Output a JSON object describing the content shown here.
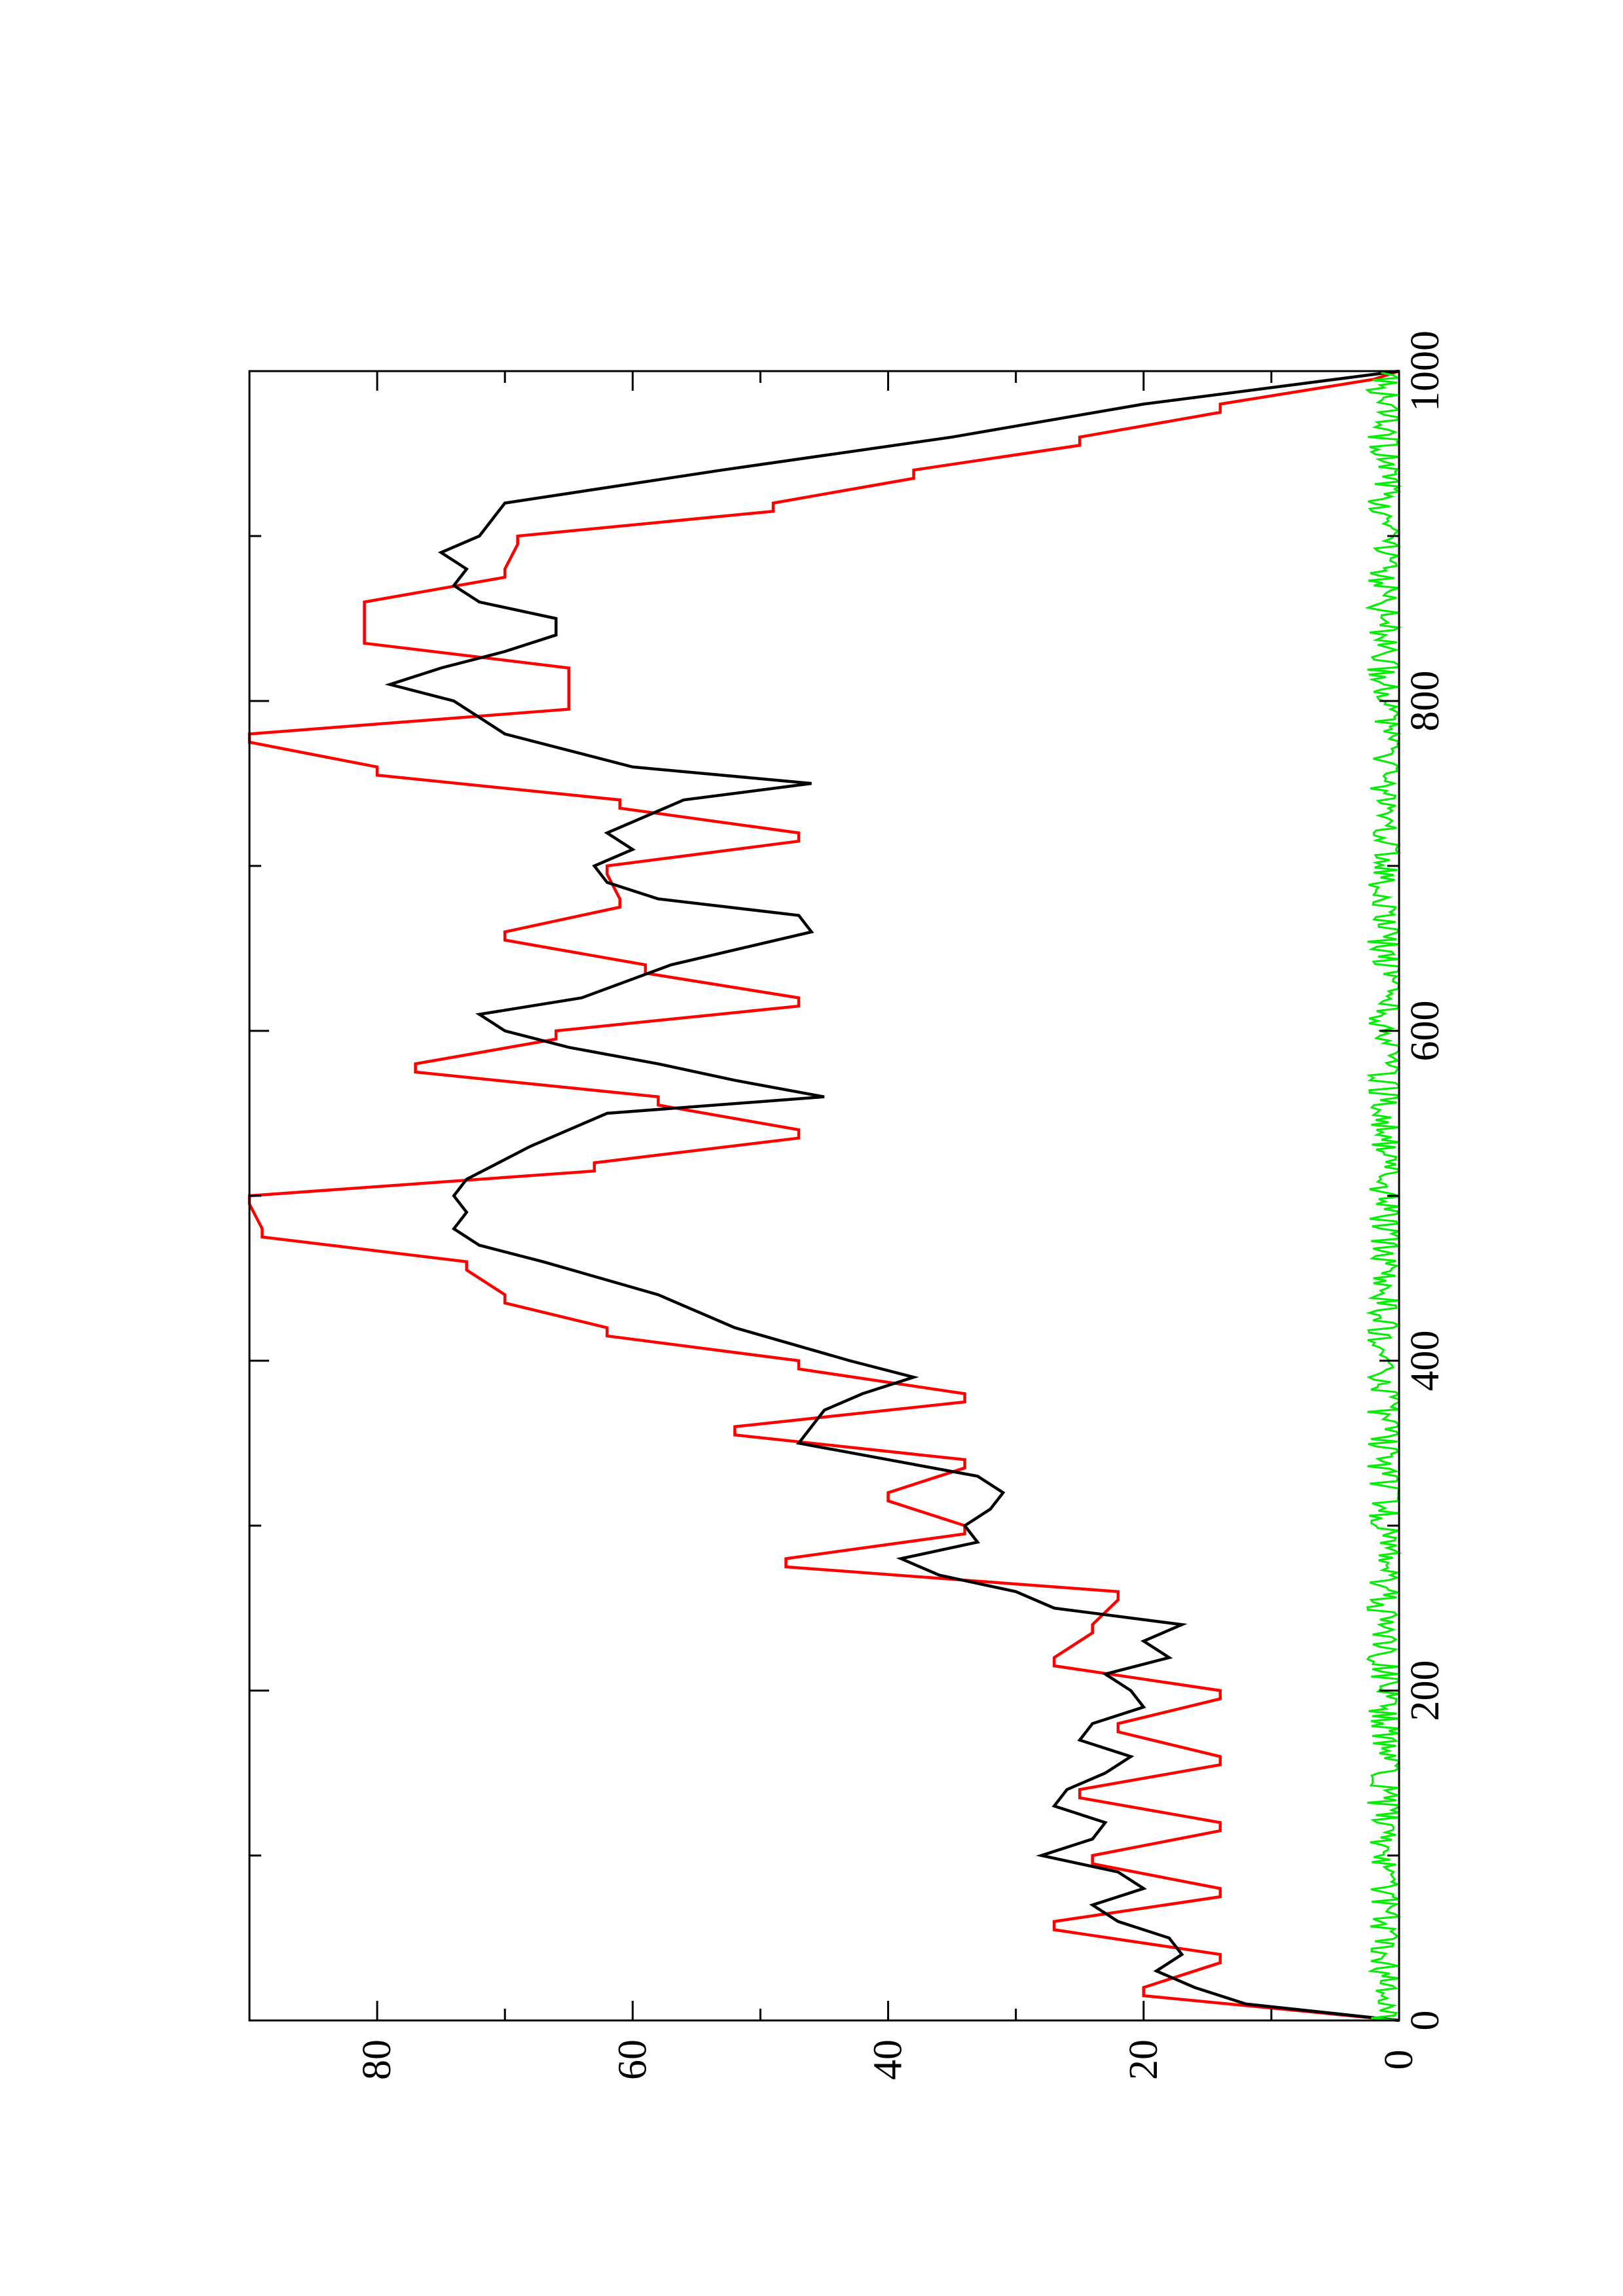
{
  "chart_data": {
    "type": "line",
    "title": "",
    "xlabel": "",
    "ylabel": "",
    "orientation": "rotated-90-ccw",
    "xlim": [
      0,
      1000
    ],
    "ylim": [
      0,
      90
    ],
    "x_ticks": [
      0,
      200,
      400,
      600,
      800,
      1000
    ],
    "x_tick_labels": [
      "0",
      "200",
      "400",
      "600",
      "800",
      "1000"
    ],
    "x_minor_ticks": [
      100,
      300,
      500,
      700,
      900
    ],
    "y_ticks": [
      0,
      20,
      40,
      60,
      80
    ],
    "y_tick_labels": [
      "0",
      "20",
      "40",
      "60",
      "80"
    ],
    "y_minor_ticks": [
      10,
      30,
      50,
      70
    ],
    "grid": false,
    "legend": "none",
    "series": [
      {
        "color": "#ff0000",
        "step": true,
        "x": [
          0,
          15,
          20,
          35,
          40,
          55,
          60,
          75,
          80,
          95,
          100,
          115,
          120,
          135,
          140,
          155,
          160,
          175,
          180,
          195,
          200,
          215,
          220,
          235,
          240,
          255,
          260,
          275,
          280,
          295,
          300,
          315,
          320,
          335,
          340,
          355,
          360,
          375,
          380,
          395,
          400,
          415,
          420,
          435,
          440,
          455,
          460,
          475,
          480,
          495,
          500,
          515,
          520,
          535,
          540,
          555,
          560,
          575,
          580,
          595,
          600,
          615,
          620,
          635,
          640,
          655,
          660,
          675,
          680,
          695,
          700,
          715,
          720,
          735,
          740,
          755,
          760,
          775,
          780,
          795,
          800,
          815,
          820,
          835,
          840,
          855,
          860,
          875,
          880,
          895,
          900,
          915,
          920,
          935,
          940,
          955,
          960,
          975,
          980,
          995,
          1000
        ],
        "y": [
          0,
          20,
          20,
          14,
          14,
          27,
          27,
          14,
          14,
          24,
          24,
          14,
          14,
          25,
          25,
          14,
          14,
          22,
          22,
          14,
          14,
          27,
          27,
          24,
          24,
          22,
          22,
          48,
          48,
          34,
          34,
          40,
          40,
          34,
          34,
          52,
          52,
          34,
          34,
          47,
          47,
          62,
          62,
          70,
          70,
          73,
          73,
          89,
          89,
          90,
          90,
          63,
          63,
          47,
          47,
          58,
          58,
          77,
          77,
          66,
          66,
          47,
          47,
          59,
          59,
          70,
          70,
          61,
          61,
          62,
          62,
          47,
          47,
          61,
          61,
          80,
          80,
          90,
          90,
          65,
          65,
          65,
          65,
          81,
          81,
          81,
          81,
          70,
          70,
          69,
          69,
          49,
          49,
          38,
          38,
          25,
          25,
          14,
          14,
          2,
          0
        ]
      },
      {
        "color": "#000000",
        "step": false,
        "x": [
          0,
          10,
          20,
          30,
          40,
          50,
          60,
          70,
          80,
          90,
          100,
          110,
          120,
          130,
          140,
          150,
          160,
          170,
          180,
          190,
          200,
          210,
          220,
          230,
          240,
          250,
          260,
          270,
          280,
          290,
          300,
          310,
          320,
          330,
          340,
          350,
          360,
          370,
          380,
          390,
          400,
          420,
          440,
          460,
          470,
          480,
          490,
          500,
          510,
          530,
          550,
          560,
          570,
          580,
          590,
          600,
          610,
          620,
          640,
          660,
          670,
          680,
          690,
          700,
          710,
          720,
          740,
          750,
          760,
          780,
          800,
          810,
          820,
          830,
          840,
          850,
          860,
          870,
          880,
          890,
          900,
          920,
          940,
          960,
          980,
          1000
        ],
        "y": [
          0,
          12,
          16,
          19,
          17,
          18,
          22,
          24,
          20,
          22,
          28,
          24,
          23,
          27,
          26,
          23,
          21,
          25,
          24,
          20,
          21,
          23,
          18,
          20,
          17,
          27,
          30,
          36,
          39,
          33,
          34,
          32,
          31,
          33,
          40,
          47,
          46,
          45,
          42,
          38,
          43,
          52,
          58,
          67,
          72,
          74,
          73,
          74,
          73,
          68,
          62,
          45,
          52,
          58,
          65,
          70,
          72,
          64,
          57,
          46,
          47,
          58,
          62,
          63,
          60,
          62,
          56,
          46,
          60,
          70,
          74,
          79,
          75,
          70,
          66,
          66,
          72,
          74,
          73,
          75,
          72,
          70,
          53,
          35,
          20,
          0
        ]
      },
      {
        "color": "#00ee00",
        "step": false,
        "noise": true,
        "x_range": [
          0,
          1000
        ],
        "y_range": [
          0,
          2.5
        ]
      }
    ]
  }
}
